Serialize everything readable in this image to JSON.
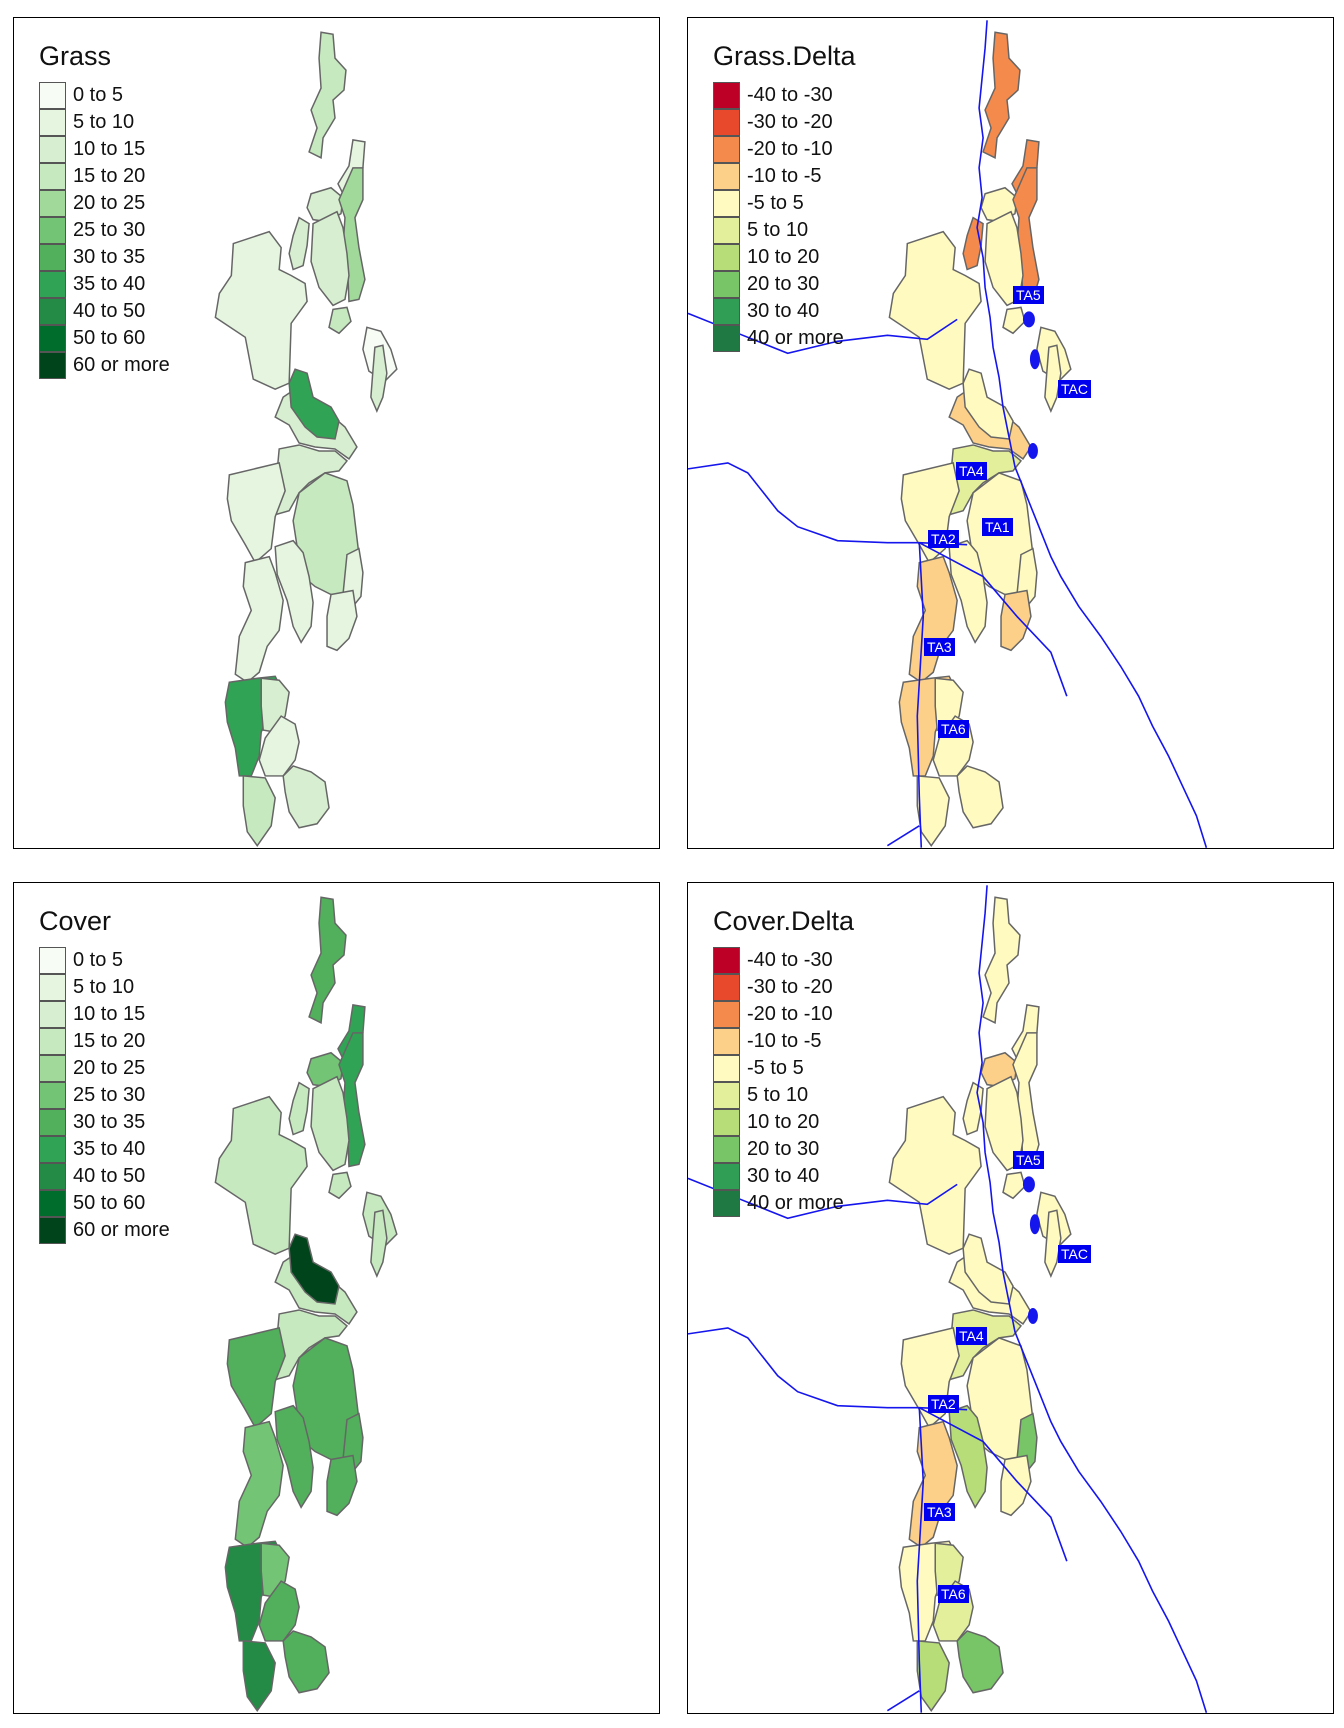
{
  "colors": {
    "grass": [
      "#f7fcf5",
      "#e5f5e0",
      "#d7efd0",
      "#c7e9c0",
      "#a1d99b",
      "#74c476",
      "#52b05c",
      "#31a354",
      "#238b45",
      "#006d2c",
      "#00441b"
    ],
    "delta": [
      "#bd0026",
      "#e8482b",
      "#f58a4d",
      "#fdd08a",
      "#fffac0",
      "#e4ef9c",
      "#b7dd78",
      "#78c567",
      "#319e55",
      "#1e7a42"
    ],
    "boundary": "#666666",
    "river": "#1515ee",
    "label_bg": "#0000ee"
  },
  "panels": [
    {
      "title": "Grass",
      "legend": [
        "0 to 5",
        "5 to 10",
        "10 to 15",
        "15 to 20",
        "20 to 25",
        "25 to 30",
        "30 to 35",
        "35 to 40",
        "40 to 50",
        "50 to 60",
        "60 or more"
      ],
      "palette": "grass",
      "fills": [
        3,
        1,
        2,
        4,
        2,
        2,
        1,
        3,
        0,
        2,
        2,
        7,
        2,
        1,
        3,
        1,
        1,
        1,
        1,
        7,
        2,
        1,
        2,
        3
      ],
      "rivers": false,
      "labels": []
    },
    {
      "title": "Grass.Delta",
      "legend": [
        "-40 to -30",
        "-30 to -20",
        "-20 to -10",
        "-10 to -5",
        "-5 to 5",
        "5 to 10",
        "10 to 20",
        "20 to 30",
        "30 to 40",
        "40 or more"
      ],
      "palette": "delta",
      "fills": [
        2,
        2,
        4,
        2,
        4,
        2,
        4,
        4,
        4,
        4,
        3,
        4,
        5,
        4,
        4,
        4,
        3,
        4,
        3,
        3,
        4,
        4,
        4,
        4
      ],
      "rivers": true,
      "labels": [
        "TA5",
        "TAC",
        "TA4",
        "TA1",
        "TA2",
        "TA3",
        "TA6"
      ]
    },
    {
      "title": "Cover",
      "legend": [
        "0 to 5",
        "5 to 10",
        "10 to 15",
        "15 to 20",
        "20 to 25",
        "25 to 30",
        "30 to 35",
        "35 to 40",
        "40 to 50",
        "50 to 60",
        "60 or more"
      ],
      "palette": "grass",
      "fills": [
        6,
        7,
        5,
        7,
        3,
        3,
        3,
        3,
        3,
        3,
        3,
        10,
        3,
        6,
        6,
        6,
        5,
        6,
        6,
        8,
        5,
        6,
        6,
        8
      ],
      "rivers": false,
      "labels": []
    },
    {
      "title": "Cover.Delta",
      "legend": [
        "-40 to -30",
        "-30 to -20",
        "-20 to -10",
        "-10 to -5",
        "-5 to 5",
        "5 to 10",
        "10 to 20",
        "20 to 30",
        "30 to 40",
        "40 or more"
      ],
      "palette": "delta",
      "fills": [
        4,
        4,
        3,
        4,
        4,
        4,
        4,
        4,
        4,
        4,
        4,
        4,
        5,
        4,
        4,
        6,
        3,
        7,
        4,
        4,
        5,
        5,
        7,
        6
      ],
      "rivers": true,
      "labels": [
        "TA5",
        "TAC",
        "TA4",
        "TA2",
        "TA3",
        "TA6"
      ]
    }
  ]
}
